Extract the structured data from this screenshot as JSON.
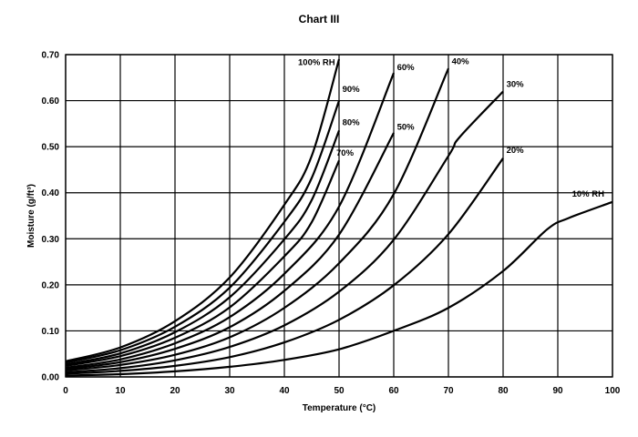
{
  "chart_data": {
    "type": "line",
    "title": "Chart III",
    "xlabel": "Temperature (°C)",
    "ylabel": "Moisture (g/ft³)",
    "xlim": [
      0,
      100
    ],
    "ylim": [
      0,
      0.7
    ],
    "xticks": [
      0,
      10,
      20,
      30,
      40,
      50,
      60,
      70,
      80,
      90,
      100
    ],
    "yticks": [
      0.0,
      0.1,
      0.2,
      0.3,
      0.4,
      0.5,
      0.6,
      0.7
    ],
    "ytick_labels": [
      "0.00",
      "0.10",
      "0.20",
      "0.30",
      "0.40",
      "0.50",
      "0.60",
      "0.70"
    ],
    "grid": true,
    "series": [
      {
        "name": "100% RH",
        "x": [
          0,
          10,
          20,
          30,
          40,
          45,
          50
        ],
        "y": [
          0.034,
          0.064,
          0.121,
          0.216,
          0.374,
          0.48,
          0.69
        ]
      },
      {
        "name": "90%",
        "x": [
          0,
          10,
          20,
          30,
          40,
          45,
          50
        ],
        "y": [
          0.031,
          0.058,
          0.109,
          0.194,
          0.337,
          0.432,
          0.6
        ]
      },
      {
        "name": "80%",
        "x": [
          0,
          10,
          20,
          30,
          40,
          45,
          50
        ],
        "y": [
          0.027,
          0.051,
          0.097,
          0.173,
          0.299,
          0.384,
          0.535
        ]
      },
      {
        "name": "70%",
        "x": [
          0,
          10,
          20,
          30,
          40,
          45,
          50
        ],
        "y": [
          0.024,
          0.045,
          0.085,
          0.151,
          0.262,
          0.336,
          0.47
        ]
      },
      {
        "name": "60%",
        "x": [
          0,
          10,
          20,
          30,
          40,
          50,
          60
        ],
        "y": [
          0.02,
          0.038,
          0.073,
          0.13,
          0.224,
          0.37,
          0.66
        ]
      },
      {
        "name": "50%",
        "x": [
          0,
          10,
          20,
          30,
          40,
          50,
          60
        ],
        "y": [
          0.017,
          0.032,
          0.061,
          0.108,
          0.187,
          0.309,
          0.53
        ]
      },
      {
        "name": "40%",
        "x": [
          0,
          10,
          20,
          30,
          40,
          50,
          60,
          70
        ],
        "y": [
          0.014,
          0.026,
          0.048,
          0.086,
          0.15,
          0.247,
          0.397,
          0.67
        ]
      },
      {
        "name": "30%",
        "x": [
          0,
          10,
          20,
          30,
          40,
          50,
          60,
          70,
          72,
          80
        ],
        "y": [
          0.01,
          0.019,
          0.036,
          0.065,
          0.112,
          0.185,
          0.298,
          0.48,
          0.52,
          0.62
        ]
      },
      {
        "name": "20%",
        "x": [
          0,
          10,
          20,
          30,
          40,
          50,
          60,
          70,
          80
        ],
        "y": [
          0.007,
          0.013,
          0.024,
          0.043,
          0.075,
          0.124,
          0.199,
          0.31,
          0.475
        ]
      },
      {
        "name": "10% RH",
        "x": [
          0,
          10,
          20,
          30,
          40,
          50,
          60,
          70,
          80,
          88,
          92,
          100
        ],
        "y": [
          0.003,
          0.006,
          0.012,
          0.022,
          0.037,
          0.06,
          0.1,
          0.15,
          0.23,
          0.32,
          0.345,
          0.38
        ]
      }
    ],
    "series_labels": [
      {
        "text": "100% RH",
        "x": 42.5,
        "y": 0.677
      },
      {
        "text": "90%",
        "x": 50.6,
        "y": 0.619
      },
      {
        "text": "80%",
        "x": 50.6,
        "y": 0.547
      },
      {
        "text": "70%",
        "x": 49.5,
        "y": 0.481
      },
      {
        "text": "60%",
        "x": 60.6,
        "y": 0.666
      },
      {
        "text": "50%",
        "x": 60.6,
        "y": 0.537
      },
      {
        "text": "40%",
        "x": 70.6,
        "y": 0.679
      },
      {
        "text": "30%",
        "x": 80.6,
        "y": 0.63
      },
      {
        "text": "20%",
        "x": 80.6,
        "y": 0.486
      },
      {
        "text": "10% RH",
        "x": 92.6,
        "y": 0.392
      }
    ]
  }
}
